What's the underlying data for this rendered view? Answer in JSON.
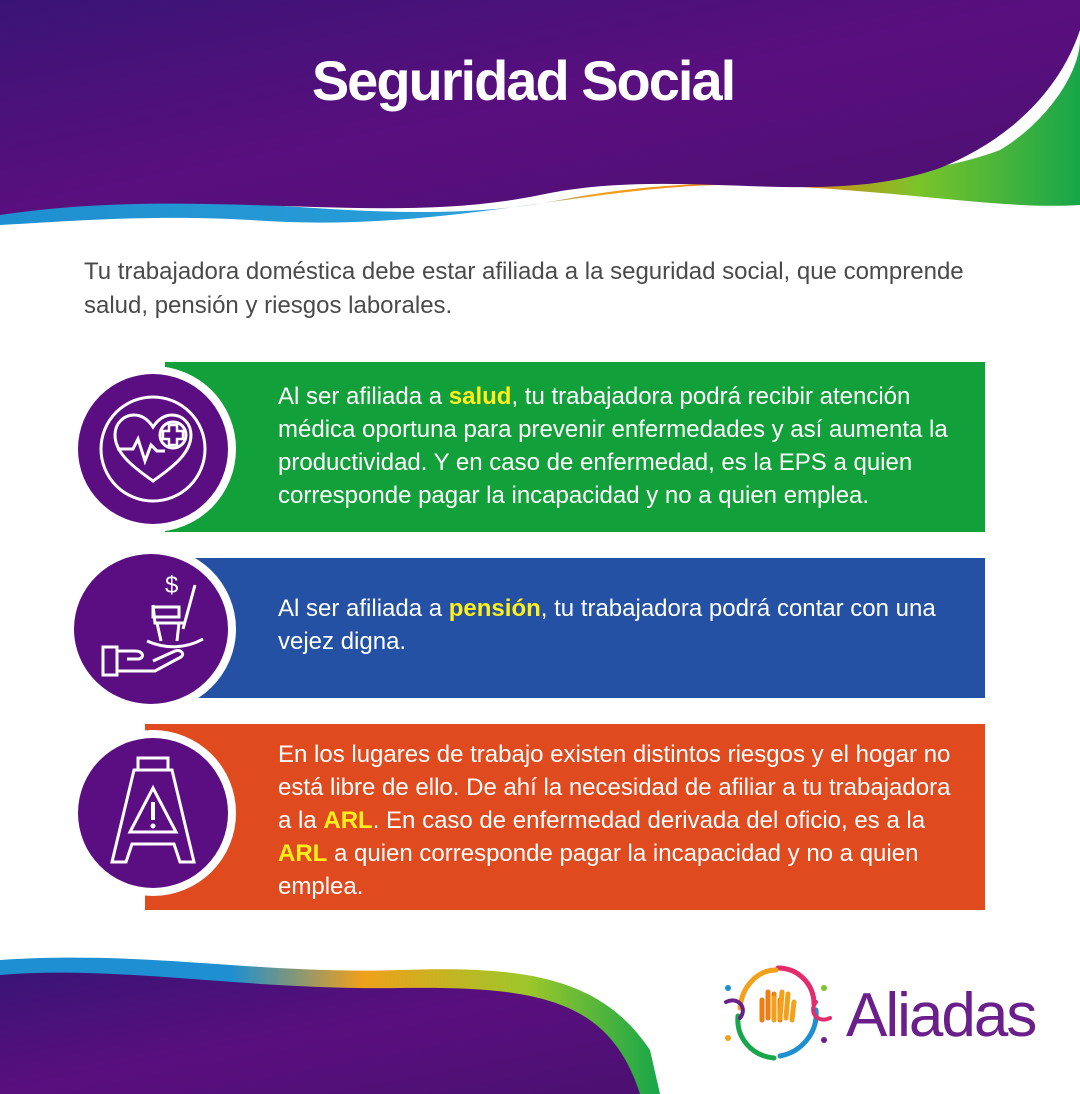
{
  "header": {
    "title": "Seguridad Social"
  },
  "intro": {
    "text": "Tu trabajadora doméstica debe estar afiliada a la seguridad social, que comprende salud, pensión y riesgos laborales."
  },
  "cards": [
    {
      "icon": "heart-medical-icon",
      "color": "#12a03a",
      "before": "Al ser afiliada a ",
      "highlight": "salud",
      "after": ", tu trabajadora podrá recibir atención médica oportuna para prevenir enfermedades y así aumenta la productividad. Y en caso de enfermedad, es la EPS a quien corresponde pagar la incapacidad y no a quien emplea."
    },
    {
      "icon": "rocking-chair-hand-icon",
      "color": "#2451a3",
      "before": "Al ser afiliada a ",
      "highlight": "pensión",
      "after": ", tu trabajadora podrá contar con una vejez digna."
    },
    {
      "icon": "warning-sign-icon",
      "color": "#e04a1f",
      "part1": "En los lugares de trabajo existen distintos riesgos y el hogar no está libre de ello. De ahí la necesidad de afiliar a tu trabajadora a la ",
      "highlight1": "ARL",
      "part2": ". En caso de enfermedad derivada del oficio, es a la ",
      "highlight2": "ARL",
      "part3": " a quien corresponde pagar la incapacidad y no a quien emplea."
    }
  ],
  "logo": {
    "name": "Aliadas",
    "icon": "aliadas-hands-logo"
  },
  "colors": {
    "purple": "#5b0e82",
    "green": "#12a03a",
    "blue": "#2451a3",
    "orange": "#e04a1f",
    "highlight": "#ffef1a"
  }
}
